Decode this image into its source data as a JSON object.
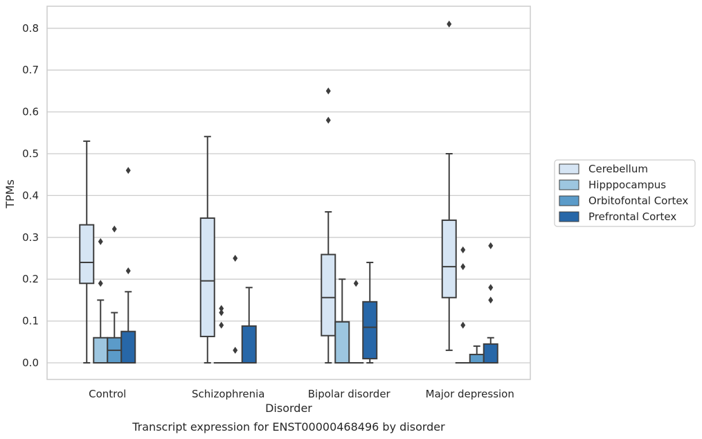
{
  "chart_data": {
    "type": "box",
    "caption": "Transcript expression for ENST00000468496 by disorder",
    "xlabel": "Disorder",
    "ylabel": "TPMs",
    "ylim": [
      -0.04,
      0.855
    ],
    "yticks": [
      0.0,
      0.1,
      0.2,
      0.3,
      0.4,
      0.5,
      0.6,
      0.7,
      0.8
    ],
    "ytick_labels": [
      "0.0",
      "0.1",
      "0.2",
      "0.3",
      "0.4",
      "0.5",
      "0.6",
      "0.7",
      "0.8"
    ],
    "grid": "horizontal",
    "legend_position": "right",
    "categories": [
      "Control",
      "Schizophrenia",
      "Bipolar disorder",
      "Major depression"
    ],
    "series": [
      {
        "name": "Cerebellum",
        "color": "#d6e5f4",
        "boxes": [
          {
            "whislo": 0.0,
            "q1": 0.19,
            "med": 0.24,
            "q3": 0.33,
            "whishi": 0.53,
            "fliers": []
          },
          {
            "whislo": 0.0,
            "q1": 0.063,
            "med": 0.196,
            "q3": 0.346,
            "whishi": 0.541,
            "fliers": []
          },
          {
            "whislo": 0.0,
            "q1": 0.065,
            "med": 0.156,
            "q3": 0.259,
            "whishi": 0.361,
            "fliers": [
              0.58,
              0.65
            ]
          },
          {
            "whislo": 0.03,
            "q1": 0.156,
            "med": 0.23,
            "q3": 0.341,
            "whishi": 0.5,
            "fliers": [
              0.81
            ]
          }
        ]
      },
      {
        "name": "Hipppocampus",
        "color": "#9dc6e0",
        "boxes": [
          {
            "whislo": 0.0,
            "q1": 0.0,
            "med": 0.0,
            "q3": 0.06,
            "whishi": 0.15,
            "fliers": [
              0.19,
              0.29
            ]
          },
          {
            "whislo": 0.0,
            "q1": 0.0,
            "med": 0.0,
            "q3": 0.0,
            "whishi": 0.0,
            "fliers": [
              0.09,
              0.12,
              0.13
            ]
          },
          {
            "whislo": 0.0,
            "q1": 0.0,
            "med": 0.0,
            "q3": 0.098,
            "whishi": 0.2,
            "fliers": []
          },
          {
            "whislo": 0.0,
            "q1": 0.0,
            "med": 0.0,
            "q3": 0.0,
            "whishi": 0.0,
            "fliers": [
              0.09,
              0.23,
              0.27
            ]
          }
        ]
      },
      {
        "name": "Orbitofontal Cortex",
        "color": "#5b9bc9",
        "boxes": [
          {
            "whislo": 0.0,
            "q1": 0.0,
            "med": 0.03,
            "q3": 0.06,
            "whishi": 0.12,
            "fliers": [
              0.32
            ]
          },
          {
            "whislo": 0.0,
            "q1": 0.0,
            "med": 0.0,
            "q3": 0.0,
            "whishi": 0.0,
            "fliers": [
              0.03,
              0.25
            ]
          },
          {
            "whislo": 0.0,
            "q1": 0.0,
            "med": 0.0,
            "q3": 0.0,
            "whishi": 0.0,
            "fliers": [
              0.19
            ]
          },
          {
            "whislo": 0.0,
            "q1": 0.0,
            "med": 0.0,
            "q3": 0.02,
            "whishi": 0.04,
            "fliers": []
          }
        ]
      },
      {
        "name": "Prefrontal Cortex",
        "color": "#2767a8",
        "boxes": [
          {
            "whislo": 0.0,
            "q1": 0.0,
            "med": 0.0,
            "q3": 0.075,
            "whishi": 0.17,
            "fliers": [
              0.22,
              0.46
            ]
          },
          {
            "whislo": 0.0,
            "q1": 0.0,
            "med": 0.0,
            "q3": 0.088,
            "whishi": 0.18,
            "fliers": []
          },
          {
            "whislo": 0.0,
            "q1": 0.01,
            "med": 0.085,
            "q3": 0.146,
            "whishi": 0.24,
            "fliers": []
          },
          {
            "whislo": 0.0,
            "q1": 0.0,
            "med": 0.0,
            "q3": 0.045,
            "whishi": 0.06,
            "fliers": [
              0.15,
              0.18,
              0.28
            ]
          }
        ]
      }
    ]
  }
}
